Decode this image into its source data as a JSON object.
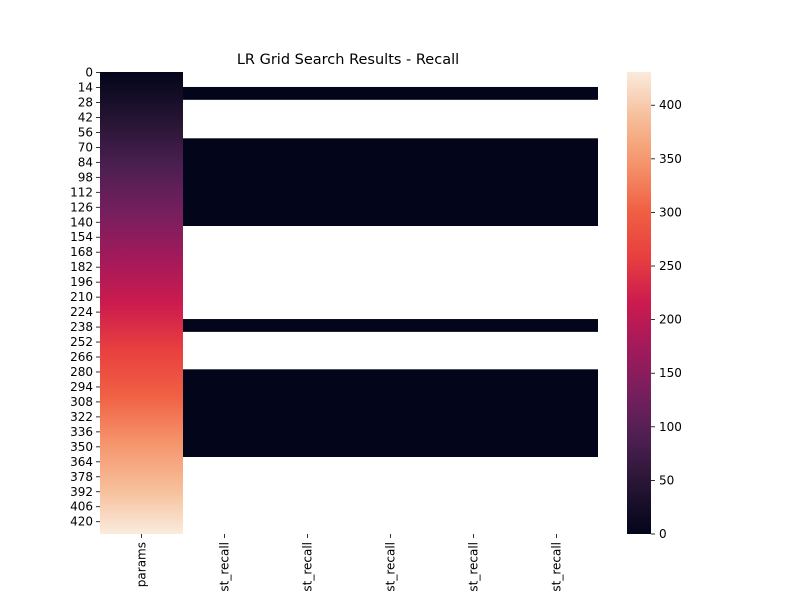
{
  "chart_data": {
    "type": "heatmap",
    "title": "LR Grid Search Results - Recall",
    "xlabel": "",
    "ylabel": "",
    "columns": [
      "params",
      "st_recall",
      "st_recall",
      "st_recall",
      "st_recall",
      "st_recall"
    ],
    "row_count": 432,
    "row_tick_labels": [
      "0",
      "14",
      "28",
      "42",
      "56",
      "70",
      "84",
      "98",
      "112",
      "126",
      "140",
      "154",
      "168",
      "182",
      "196",
      "210",
      "224",
      "238",
      "252",
      "266",
      "280",
      "294",
      "308",
      "322",
      "336",
      "350",
      "364",
      "378",
      "392",
      "406",
      "420"
    ],
    "params_column": {
      "start_value": 0,
      "end_value": 431,
      "description": "row index"
    },
    "recall_column_segments": [
      {
        "row_start": 0,
        "row_end": 13,
        "value": null
      },
      {
        "row_start": 14,
        "row_end": 25,
        "value": 0
      },
      {
        "row_start": 26,
        "row_end": 61,
        "value": null
      },
      {
        "row_start": 62,
        "row_end": 143,
        "value": 0
      },
      {
        "row_start": 144,
        "row_end": 230,
        "value": null
      },
      {
        "row_start": 231,
        "row_end": 242,
        "value": 0
      },
      {
        "row_start": 243,
        "row_end": 277,
        "value": null
      },
      {
        "row_start": 278,
        "row_end": 359,
        "value": 0
      },
      {
        "row_start": 360,
        "row_end": 431,
        "value": null
      }
    ],
    "colorbar": {
      "vmin": 0,
      "vmax": 431,
      "ticks": [
        0,
        50,
        100,
        150,
        200,
        250,
        300,
        350,
        400
      ],
      "colormap": "rocket",
      "colormap_stops": [
        "#03051a",
        "#241432",
        "#4a1f4f",
        "#741f5e",
        "#a11a5b",
        "#cb1b4f",
        "#e83f3f",
        "#f06043",
        "#f5936b",
        "#f6bd98",
        "#faebdd"
      ]
    },
    "missing_color": "#ffffff",
    "grid": false
  }
}
